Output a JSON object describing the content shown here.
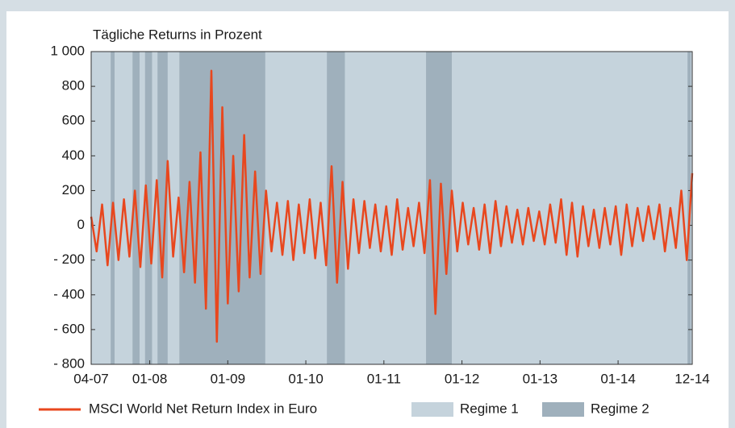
{
  "chart_data": {
    "type": "line",
    "title": "Tägliche Returns in Prozent",
    "x": [
      2007.25,
      2007.32,
      2007.39,
      2007.46,
      2007.53,
      2007.6,
      2007.67,
      2007.74,
      2007.81,
      2007.88,
      2007.95,
      2008.02,
      2008.09,
      2008.16,
      2008.23,
      2008.3,
      2008.37,
      2008.44,
      2008.51,
      2008.58,
      2008.65,
      2008.72,
      2008.79,
      2008.86,
      2008.93,
      2009.0,
      2009.07,
      2009.14,
      2009.21,
      2009.28,
      2009.35,
      2009.42,
      2009.49,
      2009.56,
      2009.63,
      2009.7,
      2009.77,
      2009.84,
      2009.91,
      2009.98,
      2010.05,
      2010.12,
      2010.19,
      2010.26,
      2010.33,
      2010.4,
      2010.47,
      2010.54,
      2010.61,
      2010.68,
      2010.75,
      2010.82,
      2010.89,
      2010.96,
      2011.03,
      2011.1,
      2011.17,
      2011.24,
      2011.31,
      2011.38,
      2011.45,
      2011.52,
      2011.59,
      2011.66,
      2011.73,
      2011.8,
      2011.87,
      2011.94,
      2012.01,
      2012.08,
      2012.15,
      2012.22,
      2012.29,
      2012.36,
      2012.43,
      2012.5,
      2012.57,
      2012.64,
      2012.71,
      2012.78,
      2012.85,
      2012.92,
      2012.99,
      2013.06,
      2013.13,
      2013.2,
      2013.27,
      2013.34,
      2013.41,
      2013.48,
      2013.55,
      2013.62,
      2013.69,
      2013.76,
      2013.83,
      2013.9,
      2013.97,
      2014.04,
      2014.11,
      2014.18,
      2014.25,
      2014.32,
      2014.39,
      2014.46,
      2014.53,
      2014.6,
      2014.67,
      2014.74,
      2014.81,
      2014.88,
      2014.95
    ],
    "series": [
      {
        "name": "MSCI World Net Return Index in Euro",
        "color": "#e8471e",
        "values": [
          50,
          -150,
          120,
          -230,
          130,
          -200,
          150,
          -180,
          200,
          -240,
          230,
          -220,
          260,
          -300,
          370,
          -180,
          160,
          -270,
          250,
          -330,
          420,
          -480,
          890,
          -670,
          680,
          -450,
          400,
          -380,
          520,
          -300,
          310,
          -280,
          200,
          -150,
          130,
          -170,
          140,
          -200,
          120,
          -160,
          150,
          -190,
          130,
          -230,
          340,
          -330,
          250,
          -250,
          150,
          -160,
          140,
          -130,
          120,
          -150,
          110,
          -170,
          150,
          -140,
          100,
          -120,
          130,
          -160,
          260,
          -510,
          240,
          -280,
          200,
          -150,
          130,
          -110,
          100,
          -140,
          120,
          -160,
          140,
          -120,
          110,
          -100,
          90,
          -110,
          100,
          -90,
          80,
          -110,
          120,
          -100,
          150,
          -170,
          130,
          -180,
          110,
          -120,
          90,
          -130,
          100,
          -110,
          110,
          -170,
          120,
          -120,
          100,
          -90,
          110,
          -80,
          120,
          -150,
          100,
          -130,
          200,
          -200,
          300
        ]
      }
    ],
    "regimes": [
      {
        "name": "Regime 1",
        "color": "#c5d3dc"
      },
      {
        "name": "Regime 2",
        "color": "#9fb0bc",
        "intervals": [
          [
            2007.5,
            2007.55
          ],
          [
            2007.78,
            2007.87
          ],
          [
            2007.94,
            2008.03
          ],
          [
            2008.1,
            2008.23
          ],
          [
            2008.38,
            2009.48
          ],
          [
            2010.27,
            2010.5
          ],
          [
            2011.54,
            2011.87
          ],
          [
            2014.89,
            2014.93
          ]
        ]
      }
    ],
    "xlim": [
      2007.25,
      2014.95
    ],
    "xticks": [
      {
        "value": 2007.25,
        "label": "04-07"
      },
      {
        "value": 2008,
        "label": "01-08"
      },
      {
        "value": 2009,
        "label": "01-09"
      },
      {
        "value": 2010,
        "label": "01-10"
      },
      {
        "value": 2011,
        "label": "01-11"
      },
      {
        "value": 2012,
        "label": "01-12"
      },
      {
        "value": 2013,
        "label": "01-13"
      },
      {
        "value": 2014,
        "label": "01-14"
      },
      {
        "value": 2014.95,
        "label": "12-14"
      }
    ],
    "ylim": [
      -800,
      1000
    ],
    "yticks": [
      {
        "value": -800,
        "label": "- 800"
      },
      {
        "value": -600,
        "label": "- 600"
      },
      {
        "value": -400,
        "label": "- 400"
      },
      {
        "value": -200,
        "label": "- 200"
      },
      0,
      200,
      400,
      600,
      800,
      {
        "value": 1000,
        "label": "1 000"
      }
    ]
  }
}
